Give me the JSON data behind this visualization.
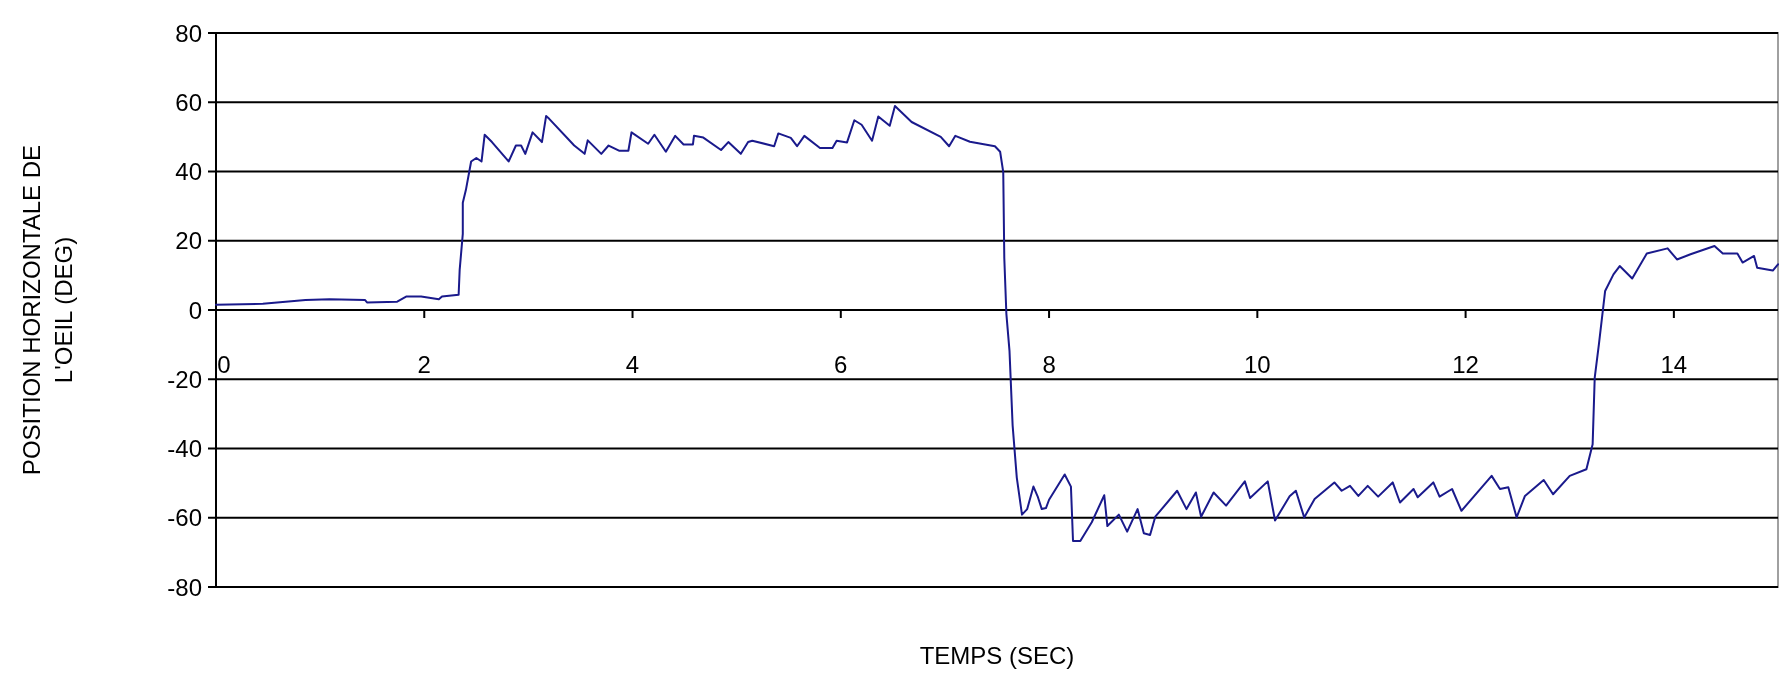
{
  "chart_data": {
    "type": "line",
    "xlabel": "TEMPS (SEC)",
    "ylabel": "POSITION HORIZONTALE DE\nL'OEIL (DEG)",
    "xlim": [
      0,
      15
    ],
    "xticks": [
      0,
      2,
      4,
      6,
      8,
      10,
      12,
      14
    ],
    "ylim": [
      -80,
      80
    ],
    "yticks": [
      -80,
      -60,
      -40,
      -20,
      0,
      20,
      40,
      60,
      80
    ],
    "grid": "y",
    "marker": "none",
    "line_style": "solid",
    "series": [
      {
        "color": "#1a1a8c",
        "x": [
          0,
          0.45,
          0.86,
          1.09,
          1.43,
          1.45,
          1.74,
          1.83,
          1.97,
          2.14,
          2.17,
          2.33,
          2.34,
          2.37,
          2.37,
          2.4,
          2.45,
          2.5,
          2.55,
          2.58,
          2.65,
          2.81,
          2.88,
          2.93,
          2.97,
          3.04,
          3.13,
          3.17,
          3.2,
          3.44,
          3.54,
          3.57,
          3.7,
          3.77,
          3.87,
          3.96,
          3.99,
          4.15,
          4.21,
          4.32,
          4.41,
          4.49,
          4.58,
          4.59,
          4.68,
          4.85,
          4.92,
          5.04,
          5.11,
          5.15,
          5.36,
          5.4,
          5.52,
          5.58,
          5.65,
          5.8,
          5.92,
          5.96,
          6.06,
          6.13,
          6.2,
          6.3,
          6.36,
          6.47,
          6.52,
          6.68,
          6.96,
          7.04,
          7.1,
          7.24,
          7.48,
          7.53,
          7.56,
          7.57,
          7.59,
          7.62,
          7.65,
          7.69,
          7.74,
          7.79,
          7.85,
          7.89,
          7.93,
          7.97,
          8,
          8.15,
          8.21,
          8.23,
          8.3,
          8.41,
          8.53,
          8.56,
          8.67,
          8.75,
          8.85,
          8.91,
          8.97,
          9.02,
          9.23,
          9.32,
          9.41,
          9.46,
          9.58,
          9.7,
          9.88,
          9.93,
          10.1,
          10.17,
          10.31,
          10.37,
          10.45,
          10.55,
          10.74,
          10.81,
          10.89,
          10.97,
          11.06,
          11.16,
          11.3,
          11.37,
          11.5,
          11.54,
          11.69,
          11.75,
          11.87,
          11.96,
          12.25,
          12.33,
          12.41,
          12.49,
          12.57,
          12.75,
          12.84,
          13,
          13.16,
          13.22,
          13.24,
          13.28,
          13.34,
          13.42,
          13.48,
          13.6,
          13.74,
          13.94,
          14.03,
          14.16,
          14.39,
          14.47,
          14.61,
          14.66,
          14.77,
          14.8,
          14.95,
          15
        ],
        "values": [
          1.5,
          1.8,
          2.9,
          3.1,
          2.9,
          2.2,
          2.4,
          3.9,
          3.9,
          3.1,
          3.9,
          4.4,
          11.6,
          22,
          31,
          34.7,
          42.9,
          43.9,
          42.9,
          50.6,
          48.5,
          42.9,
          47.5,
          47.5,
          45.1,
          51.3,
          48.5,
          56,
          55.2,
          47.5,
          45.1,
          49,
          45.1,
          47.5,
          46,
          46,
          51.3,
          48,
          50.6,
          45.7,
          50.3,
          47.8,
          47.8,
          50.3,
          49.8,
          46.2,
          48.5,
          45.1,
          48.5,
          48.9,
          47.3,
          51,
          49.7,
          47.3,
          50.3,
          46.8,
          46.8,
          48.9,
          48.4,
          54.8,
          53.5,
          48.9,
          55.9,
          53.2,
          58.9,
          54.3,
          50,
          47.3,
          50.3,
          48.6,
          47.3,
          45.7,
          39.8,
          15,
          -1.1,
          -11.8,
          -33.3,
          -48.4,
          -59.1,
          -57.5,
          -51,
          -53.8,
          -57.5,
          -57.2,
          -54.8,
          -47.5,
          -51,
          -66.7,
          -66.7,
          -61.3,
          -53.5,
          -62.4,
          -59.1,
          -64,
          -57.5,
          -64.5,
          -65,
          -59.7,
          -52.2,
          -57.5,
          -52.7,
          -59.7,
          -52.7,
          -56.5,
          -49.5,
          -54.3,
          -49.5,
          -60.8,
          -53.8,
          -52.2,
          -59.9,
          -54.6,
          -49.8,
          -52.2,
          -50.8,
          -53.7,
          -50.8,
          -53.9,
          -49.8,
          -55.6,
          -51.7,
          -54.1,
          -49.8,
          -53.9,
          -51.7,
          -58,
          -47.9,
          -51.7,
          -51.2,
          -59.9,
          -53.7,
          -49.1,
          -53.2,
          -47.9,
          -46,
          -38.8,
          -19.5,
          -9.9,
          5.5,
          10.3,
          12.7,
          9.1,
          16.3,
          17.8,
          14.6,
          16.1,
          18.5,
          16.3,
          16.3,
          13.7,
          15.6,
          12.2,
          11.4,
          13.2
        ]
      }
    ]
  }
}
